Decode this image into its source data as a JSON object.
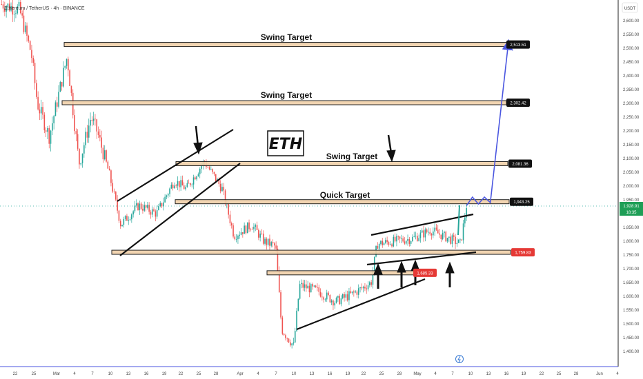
{
  "header": {
    "title": "Ethereum / TetherUS · 4h · BINANCE"
  },
  "currency": "USDT",
  "logo_text": "ETH",
  "price_scale": {
    "ticks": [
      "2,600.00",
      "2,550.00",
      "2,500.00",
      "2,450.00",
      "2,400.00",
      "2,350.00",
      "2,300.00",
      "2,250.00",
      "2,200.00",
      "2,150.00",
      "2,100.00",
      "2,050.00",
      "2,000.00",
      "1,950.00",
      "1,900.00",
      "1,850.00",
      "1,800.00",
      "1,750.00",
      "1,700.00",
      "1,650.00",
      "1,600.00",
      "1,550.00",
      "1,500.00",
      "1,450.00",
      "1,400.00"
    ],
    "current_price": "1,928.91",
    "countdown": "18:35",
    "levels": [
      {
        "label": "2,513.51",
        "style": "dark"
      },
      {
        "label": "2,302.42",
        "style": "dark"
      },
      {
        "label": "2,081.36",
        "style": "dark"
      },
      {
        "label": "1,943.25",
        "style": "dark"
      },
      {
        "label": "1,759.83",
        "style": "red"
      },
      {
        "label": "1,685.33",
        "style": "red"
      }
    ]
  },
  "time_axis": {
    "labels": [
      "22",
      "25",
      "Mar",
      "4",
      "7",
      "10",
      "13",
      "16",
      "19",
      "22",
      "25",
      "28",
      "Apr",
      "4",
      "7",
      "10",
      "13",
      "16",
      "19",
      "22",
      "25",
      "28",
      "May",
      "4",
      "7",
      "10",
      "13",
      "16",
      "19",
      "22",
      "25",
      "28",
      "Jun",
      "4"
    ]
  },
  "annotations": {
    "targets": [
      "Swing Target",
      "Swing Target",
      "Swing Target",
      "Quick Target"
    ]
  },
  "colors": {
    "up": "#26a69a",
    "down": "#ef5350",
    "zone_fill": "#f0cfa8",
    "zone_border": "#222222",
    "projection": "#4a56e0",
    "red_label": "#e53935"
  },
  "chart_data": {
    "type": "candlestick",
    "title": "Ethereum / TetherUS · 4h · BINANCE",
    "y_unit": "USDT",
    "ylim": [
      1380,
      2640
    ],
    "last_price": 1928.91,
    "horizontal_levels": [
      2513.51,
      2302.42,
      2081.36,
      1943.25,
      1759.83,
      1685.33
    ],
    "price_path": [
      {
        "date": "Feb 20",
        "price": 2660
      },
      {
        "date": "Feb 23",
        "price": 2640
      },
      {
        "date": "Feb 25",
        "price": 2480
      },
      {
        "date": "Feb 26",
        "price": 2300
      },
      {
        "date": "Feb 28",
        "price": 2180
      },
      {
        "date": "Mar 2",
        "price": 2470
      },
      {
        "date": "Mar 4",
        "price": 2080
      },
      {
        "date": "Mar 6",
        "price": 2250
      },
      {
        "date": "Mar 7",
        "price": 2200
      },
      {
        "date": "Mar 9",
        "price": 2050
      },
      {
        "date": "Mar 11",
        "price": 1860
      },
      {
        "date": "Mar 14",
        "price": 1930
      },
      {
        "date": "Mar 17",
        "price": 1900
      },
      {
        "date": "Mar 20",
        "price": 2020
      },
      {
        "date": "Mar 22",
        "price": 1990
      },
      {
        "date": "Mar 25",
        "price": 2090
      },
      {
        "date": "Mar 28",
        "price": 1990
      },
      {
        "date": "Mar 30",
        "price": 1820
      },
      {
        "date": "Apr 2",
        "price": 1860
      },
      {
        "date": "Apr 4",
        "price": 1800
      },
      {
        "date": "Apr 6",
        "price": 1780
      },
      {
        "date": "Apr 7",
        "price": 1480
      },
      {
        "date": "Apr 9",
        "price": 1420
      },
      {
        "date": "Apr 10",
        "price": 1640
      },
      {
        "date": "Apr 13",
        "price": 1620
      },
      {
        "date": "Apr 16",
        "price": 1580
      },
      {
        "date": "Apr 19",
        "price": 1610
      },
      {
        "date": "Apr 22",
        "price": 1650
      },
      {
        "date": "Apr 23",
        "price": 1790
      },
      {
        "date": "Apr 26",
        "price": 1800
      },
      {
        "date": "Apr 29",
        "price": 1810
      },
      {
        "date": "May 2",
        "price": 1840
      },
      {
        "date": "May 5",
        "price": 1810
      },
      {
        "date": "May 7",
        "price": 1790
      },
      {
        "date": "May 8",
        "price": 1928.91
      }
    ],
    "projection": [
      {
        "date": "May 8",
        "price": 1928.91
      },
      {
        "date": "May 9",
        "price": 1960
      },
      {
        "date": "May 10",
        "price": 1935
      },
      {
        "date": "May 11",
        "price": 1960
      },
      {
        "date": "May 12",
        "price": 1940
      },
      {
        "date": "May 15",
        "price": 2513.51
      }
    ]
  }
}
